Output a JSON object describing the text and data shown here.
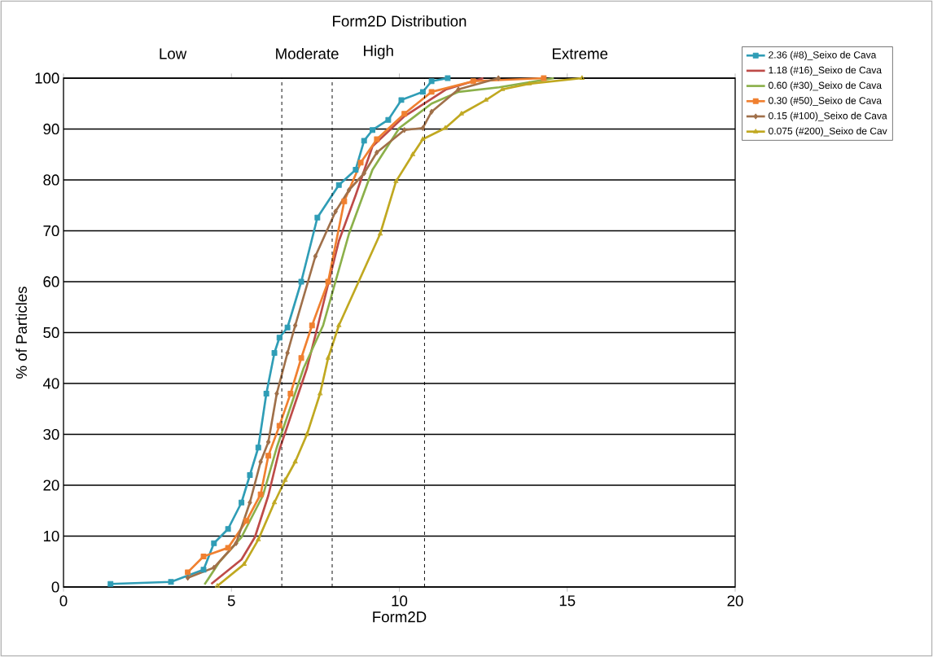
{
  "chart_data": {
    "type": "line",
    "title": "Form2D Distribution",
    "xlabel": "Form2D",
    "ylabel": "% of Particles",
    "xlim": [
      0,
      20
    ],
    "xticks": [
      0,
      5,
      10,
      15,
      20
    ],
    "ylim": [
      0,
      100
    ],
    "yticks": [
      0,
      10,
      20,
      30,
      40,
      50,
      60,
      70,
      80,
      90,
      100
    ],
    "grid": "y",
    "legend": "top right",
    "line_style": "solid",
    "ref_lines": [
      {
        "axis": "x",
        "value": 6.5,
        "line_style": "dashed"
      },
      {
        "axis": "x",
        "value": 8,
        "line_style": "dashed"
      },
      {
        "axis": "x",
        "value": 10.75,
        "line_style": "dashed"
      }
    ],
    "annotations": [
      "Low",
      "Moderate",
      "High",
      "Extreme"
    ],
    "series": [
      {
        "name": "2.36 (#8)_Seixo de Cava",
        "color": "#2f9db6",
        "marker": "square",
        "x": [
          1.4,
          3.2,
          4.17,
          4.48,
          4.9,
          5.3,
          5.55,
          5.8,
          6.04,
          6.28,
          6.43,
          6.67,
          7.08,
          7.56,
          8.2,
          8.7,
          8.95,
          9.2,
          9.67,
          10.06,
          10.7,
          10.96,
          11.44
        ],
        "values": [
          0.6,
          1,
          3.4,
          8.6,
          11.4,
          16.6,
          22,
          27.4,
          38,
          46,
          49,
          51,
          60,
          72.6,
          79,
          82,
          87.7,
          89.8,
          91.8,
          95.7,
          97.3,
          99.4,
          100
        ]
      },
      {
        "name": "1.18 (#16)_Seixo de Cava",
        "color": "#be4b48",
        "marker": "none",
        "x": [
          4.4,
          5.3,
          5.7,
          6.1,
          6.43,
          6.84,
          7.25,
          7.56,
          8.2,
          8.7,
          9.2,
          10.15,
          11.4,
          12.5
        ],
        "values": [
          0.6,
          5.4,
          9.8,
          18,
          27,
          35,
          43,
          51,
          68,
          77,
          86.6,
          92.5,
          97.8,
          100
        ]
      },
      {
        "name": "0.60 (#30)_Seixo de Cava",
        "color": "#8bb04a",
        "marker": "none",
        "x": [
          4.2,
          4.65,
          5.3,
          5.94,
          6.35,
          6.76,
          7.15,
          7.73,
          8.5,
          9.2,
          10,
          10.96,
          11.76,
          12.97,
          14.6
        ],
        "values": [
          0.5,
          5,
          9.8,
          18,
          27.4,
          35.4,
          43,
          51.4,
          69.4,
          82,
          90.2,
          95,
          97.3,
          98.2,
          100
        ]
      },
      {
        "name": "0.30 (#50)_Seixo de Cava",
        "color": "#f08030",
        "marker": "square",
        "x": [
          3.7,
          4.17,
          4.9,
          5.45,
          5.87,
          6.1,
          6.43,
          6.76,
          7.08,
          7.4,
          7.88,
          8.36,
          8.85,
          9.33,
          10.15,
          10.96,
          12.2,
          14.3
        ],
        "values": [
          2.9,
          6,
          7.7,
          13,
          18.2,
          25.8,
          31.7,
          38,
          45,
          51.4,
          60,
          75.8,
          83.4,
          88,
          93,
          97.3,
          99.4,
          100
        ]
      },
      {
        "name": "0.15 (#100)_Seixo de Cava",
        "color": "#a0704a",
        "marker": "diamond",
        "x": [
          3.7,
          4.48,
          5.14,
          5.55,
          5.87,
          6.1,
          6.35,
          6.67,
          6.9,
          7.5,
          8.1,
          8.5,
          8.95,
          9.33,
          10.15,
          10.7,
          10.96,
          11.76,
          12.95
        ],
        "values": [
          1.8,
          3.8,
          8.6,
          16.6,
          24.6,
          28.5,
          38,
          46,
          51.4,
          65,
          73.8,
          78,
          81.3,
          85.4,
          89.8,
          90.2,
          93.4,
          97.8,
          100
        ]
      },
      {
        "name": "0.075 (#200)_Seixo de Cav",
        "color": "#c0a820",
        "marker": "triangle",
        "x": [
          4.58,
          5.38,
          5.8,
          6.28,
          6.6,
          6.9,
          7.25,
          7.64,
          7.88,
          8.2,
          9.43,
          9.9,
          10.4,
          10.7,
          11.37,
          11.85,
          12.58,
          13.07,
          13.87,
          15.44
        ],
        "values": [
          0.2,
          4.5,
          9.3,
          16.6,
          21,
          24.6,
          30,
          38,
          45,
          51.4,
          69.4,
          79.7,
          85,
          88,
          90.2,
          93,
          95.7,
          97.8,
          98.9,
          100
        ]
      }
    ]
  }
}
